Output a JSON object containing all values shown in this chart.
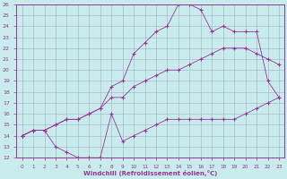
{
  "xlabel": "Windchill (Refroidissement éolien,°C)",
  "bg_color": "#c8ecec",
  "line_color": "#993399",
  "grid_color": "#aaaacc",
  "xlim": [
    -0.5,
    23.5
  ],
  "ylim": [
    12,
    26
  ],
  "xticks": [
    0,
    1,
    2,
    3,
    4,
    5,
    6,
    7,
    8,
    9,
    10,
    11,
    12,
    13,
    14,
    15,
    16,
    17,
    18,
    19,
    20,
    21,
    22,
    23
  ],
  "yticks": [
    12,
    13,
    14,
    15,
    16,
    17,
    18,
    19,
    20,
    21,
    22,
    23,
    24,
    25,
    26
  ],
  "line1_x": [
    0,
    1,
    2,
    3,
    4,
    5,
    6,
    7,
    8,
    9,
    10,
    11,
    12,
    13,
    14,
    15,
    16,
    17,
    18,
    19,
    20,
    21,
    22,
    23
  ],
  "line1_y": [
    14.0,
    14.5,
    14.5,
    13.0,
    12.5,
    12.0,
    12.0,
    12.0,
    16.0,
    13.5,
    14.0,
    14.5,
    15.0,
    15.5,
    15.5,
    15.5,
    15.5,
    15.5,
    15.5,
    15.5,
    16.0,
    16.5,
    17.0,
    17.5
  ],
  "line2_x": [
    0,
    1,
    2,
    3,
    4,
    5,
    6,
    7,
    8,
    9,
    10,
    11,
    12,
    13,
    14,
    15,
    16,
    17,
    18,
    19,
    20,
    21,
    22,
    23
  ],
  "line2_y": [
    14.0,
    14.5,
    14.5,
    15.0,
    15.5,
    15.5,
    16.0,
    16.5,
    17.5,
    17.5,
    18.5,
    19.0,
    19.5,
    20.0,
    20.0,
    20.5,
    21.0,
    21.5,
    22.0,
    22.0,
    22.0,
    21.5,
    21.0,
    20.5
  ],
  "line3_x": [
    0,
    1,
    2,
    3,
    4,
    5,
    6,
    7,
    8,
    9,
    10,
    11,
    12,
    13,
    14,
    15,
    16,
    17,
    18,
    19,
    20,
    21,
    22,
    23
  ],
  "line3_y": [
    14.0,
    14.5,
    14.5,
    15.0,
    15.5,
    15.5,
    16.0,
    16.5,
    18.5,
    19.0,
    21.5,
    22.5,
    23.5,
    24.0,
    26.0,
    26.0,
    25.5,
    23.5,
    24.0,
    23.5,
    23.5,
    23.5,
    19.0,
    17.5
  ]
}
